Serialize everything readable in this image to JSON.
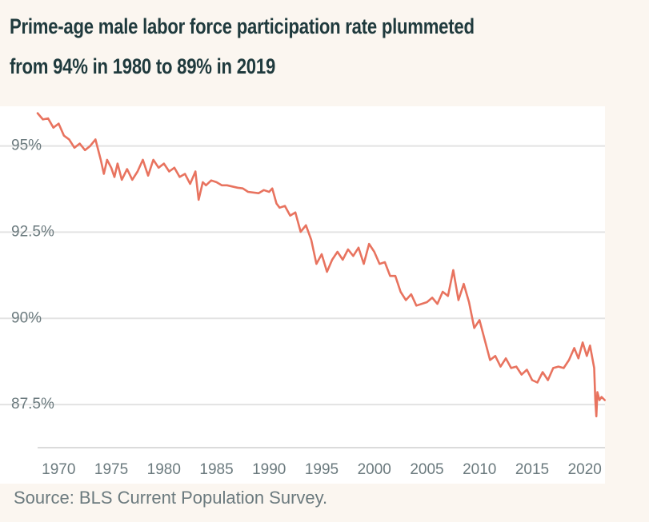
{
  "chart_data": {
    "type": "line",
    "title": [
      "Prime-age male labor force participation rate plummeted",
      "from 94% in 1980 to 89% in 2019"
    ],
    "source": "Source: BLS Current Population Survey.",
    "xlim": [
      1968,
      2022
    ],
    "xticks": [
      1970,
      1975,
      1980,
      1985,
      1990,
      1995,
      2000,
      2005,
      2010,
      2015,
      2020
    ],
    "ylim": [
      86.25,
      96.15
    ],
    "yticks": [
      {
        "value": 87.5,
        "label": "87.5%"
      },
      {
        "value": 90,
        "label": "90%"
      },
      {
        "value": 92.5,
        "label": "92.5%"
      },
      {
        "value": 95,
        "label": "95%"
      }
    ],
    "grid": true,
    "series": [
      {
        "color": "#e8735f",
        "x": [
          1968.0,
          1968.5,
          1969,
          1969.5,
          1970,
          1970.5,
          1971,
          1971.5,
          1972,
          1972.5,
          1973,
          1973.5,
          1974,
          1974.3,
          1974.6,
          1975,
          1975.3,
          1975.6,
          1976,
          1976.5,
          1977,
          1977.5,
          1978,
          1978.5,
          1979,
          1979.5,
          1980,
          1980.5,
          1981,
          1981.5,
          1982,
          1982.5,
          1983,
          1983.3,
          1983.7,
          1984,
          1984.5,
          1985,
          1985.5,
          1986,
          1987,
          1987.5,
          1988,
          1989,
          1989.5,
          1990,
          1990.3,
          1990.7,
          1991,
          1991.5,
          1992,
          1992.5,
          1993,
          1993.5,
          1994,
          1994.5,
          1995,
          1995.5,
          1996,
          1996.5,
          1997,
          1997.5,
          1998,
          1998.5,
          1999,
          1999.5,
          2000,
          2000.5,
          2001,
          2001.5,
          2002,
          2002.5,
          2003,
          2003.5,
          2004,
          2005,
          2005.5,
          2006,
          2006.5,
          2007,
          2007.5,
          2008,
          2008.5,
          2009,
          2009.5,
          2010,
          2010.5,
          2011,
          2011.5,
          2012,
          2012.5,
          2013,
          2013.5,
          2014,
          2014.5,
          2015,
          2015.5,
          2016,
          2016.5,
          2017,
          2017.5,
          2018,
          2018.5,
          2019,
          2019.4,
          2019.8,
          2020.2,
          2020.5,
          2020.9,
          2021.0,
          2021.1,
          2021.2,
          2021.4,
          2021.6,
          2021.9
        ],
        "values": [
          95.95,
          95.77,
          95.8,
          95.53,
          95.65,
          95.3,
          95.19,
          94.95,
          95.07,
          94.88,
          95.0,
          95.19,
          94.6,
          94.19,
          94.6,
          94.37,
          94.1,
          94.49,
          94.02,
          94.33,
          94.02,
          94.26,
          94.6,
          94.14,
          94.6,
          94.37,
          94.49,
          94.26,
          94.37,
          94.1,
          94.19,
          93.9,
          94.26,
          93.44,
          93.95,
          93.86,
          94.0,
          93.95,
          93.86,
          93.86,
          93.79,
          93.77,
          93.67,
          93.63,
          93.72,
          93.67,
          93.77,
          93.33,
          93.21,
          93.26,
          92.98,
          93.07,
          92.51,
          92.7,
          92.28,
          91.58,
          91.86,
          91.35,
          91.7,
          91.93,
          91.7,
          92.0,
          91.81,
          92.05,
          91.58,
          92.16,
          91.93,
          91.58,
          91.63,
          91.23,
          91.23,
          90.77,
          90.53,
          90.7,
          90.37,
          90.47,
          90.6,
          90.42,
          90.77,
          90.65,
          91.4,
          90.53,
          91.0,
          90.47,
          89.72,
          89.95,
          89.37,
          88.79,
          88.91,
          88.6,
          88.84,
          88.56,
          88.6,
          88.37,
          88.51,
          88.21,
          88.14,
          88.44,
          88.21,
          88.56,
          88.6,
          88.56,
          88.79,
          89.14,
          88.84,
          89.3,
          88.91,
          89.21,
          88.56,
          87.63,
          87.16,
          87.86,
          87.63,
          87.72,
          87.63
        ]
      }
    ]
  }
}
